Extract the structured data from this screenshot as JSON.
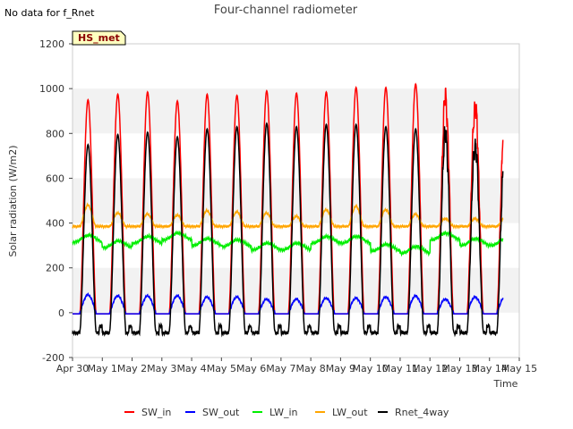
{
  "chart_data": {
    "type": "line",
    "title": "Four-channel radiometer",
    "xlabel": "Time",
    "ylabel": "Solar radiation (W/m2)",
    "ylim": [
      -200,
      1200
    ],
    "xlim": [
      0,
      15
    ],
    "x_ticks": [
      "Apr 30",
      "May 1",
      "May 2",
      "May 3",
      "May 4",
      "May 5",
      "May 6",
      "May 7",
      "May 8",
      "May 9",
      "May 10",
      "May 11",
      "May 12",
      "May 13",
      "May 14",
      "May 15"
    ],
    "y_ticks": [
      -200,
      0,
      200,
      400,
      600,
      800,
      1000,
      1200
    ],
    "grid": "horizontal bands",
    "legend_position": "bottom",
    "note": "No data for f_Rnet",
    "badge": "HS_met",
    "daily_peaks": {
      "SW_in": [
        950,
        975,
        985,
        945,
        975,
        970,
        990,
        980,
        985,
        1005,
        1005,
        1020,
        960,
        925
      ],
      "SW_out": [
        80,
        75,
        75,
        75,
        70,
        70,
        60,
        60,
        65,
        65,
        70,
        75,
        60,
        70
      ],
      "LW_in": [
        360,
        335,
        355,
        370,
        345,
        340,
        325,
        325,
        355,
        355,
        320,
        310,
        370,
        345
      ],
      "LW_out": [
        480,
        445,
        440,
        435,
        455,
        450,
        445,
        430,
        460,
        475,
        460,
        440,
        420,
        420
      ],
      "Rnet_4way": [
        750,
        795,
        805,
        785,
        820,
        830,
        845,
        830,
        840,
        840,
        830,
        820,
        800,
        750
      ]
    },
    "series": [
      {
        "name": "SW_in",
        "color": "#ff0000"
      },
      {
        "name": "SW_out",
        "color": "#0000ff"
      },
      {
        "name": "LW_in",
        "color": "#00ee00"
      },
      {
        "name": "LW_out",
        "color": "#ffa500"
      },
      {
        "name": "Rnet_4way",
        "color": "#000000"
      }
    ]
  }
}
